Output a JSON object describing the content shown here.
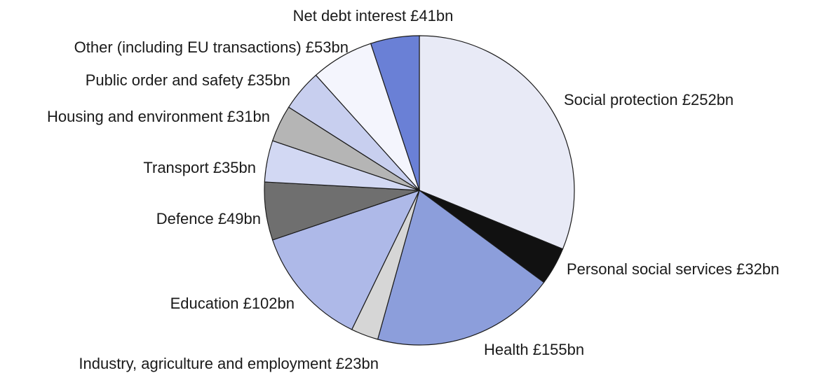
{
  "chart_data": {
    "type": "pie",
    "title": "",
    "start_angle_deg": 0,
    "direction": "clockwise",
    "series": [
      {
        "name": "Social protection",
        "label": "Social protection £252bn",
        "value": 252,
        "color": "#e8eaf6"
      },
      {
        "name": "Personal social services",
        "label": "Personal social services £32bn",
        "value": 32,
        "color": "#111111"
      },
      {
        "name": "Health",
        "label": "Health £155bn",
        "value": 155,
        "color": "#8c9edb"
      },
      {
        "name": "Industry, agriculture and employment",
        "label": "Industry, agriculture and employment £23bn",
        "value": 23,
        "color": "#d6d6d6"
      },
      {
        "name": "Education",
        "label": "Education £102bn",
        "value": 102,
        "color": "#aeb9e8"
      },
      {
        "name": "Defence",
        "label": "Defence £49bn",
        "value": 49,
        "color": "#6f6f6f"
      },
      {
        "name": "Transport",
        "label": "Transport £35bn",
        "value": 35,
        "color": "#d2d8f3"
      },
      {
        "name": "Housing and environment",
        "label": "Housing and environment £31bn",
        "value": 31,
        "color": "#b5b5b5"
      },
      {
        "name": "Public order and safety",
        "label": "Public order and safety £35bn",
        "value": 35,
        "color": "#c8cfef"
      },
      {
        "name": "Other (including EU transactions)",
        "label": "Other (including EU transactions) £53bn",
        "value": 53,
        "color": "#f4f5fd"
      },
      {
        "name": "Net debt interest",
        "label": "Net debt interest £41bn",
        "value": 41,
        "color": "#6a80d6"
      }
    ]
  }
}
